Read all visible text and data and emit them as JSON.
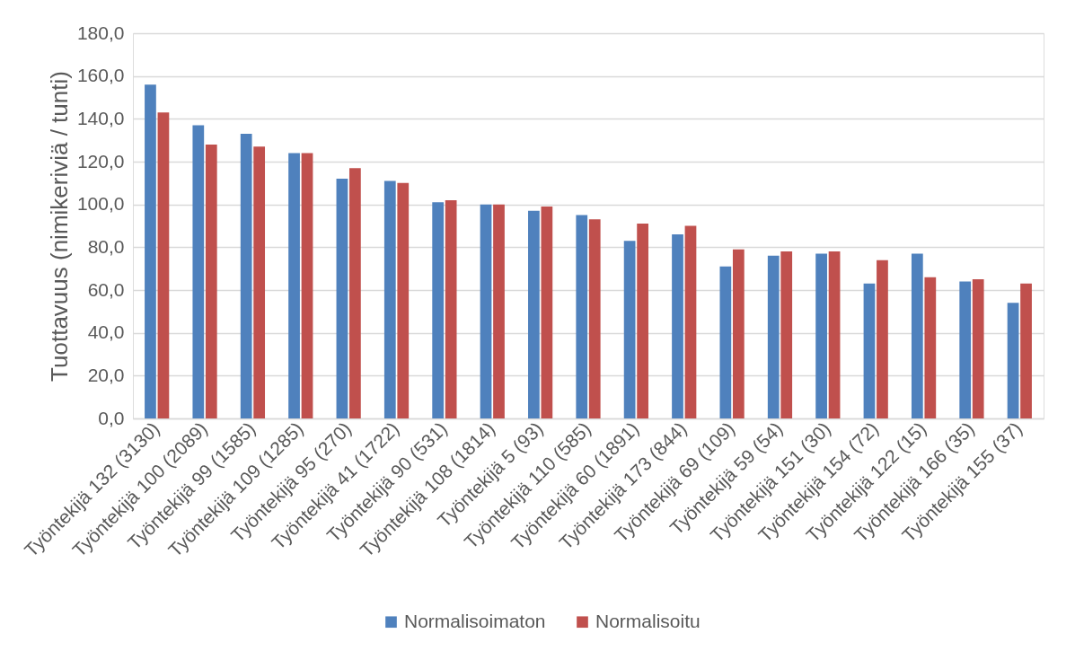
{
  "chart_data": {
    "type": "bar",
    "ylabel": "Tuottavuus (nimikeriviä / tunti)",
    "categories": [
      "Työntekijä 132 (3130)",
      "Työntekijä 100 (2089)",
      "Työntekijä 99 (1585)",
      "Työntekijä 109 (1285)",
      "Työntekijä 95 (270)",
      "Työntekijä 41 (1722)",
      "Työntekijä 90 (531)",
      "Työntekijä 108 (1814)",
      "Työntekijä 5 (93)",
      "Työntekijä 110 (585)",
      "Työntekijä 60 (1891)",
      "Työntekijä 173 (844)",
      "Työntekijä 69 (109)",
      "Työntekijä 59 (54)",
      "Työntekijä 151 (30)",
      "Työntekijä 154 (72)",
      "Työntekijä 122 (15)",
      "Työntekijä 166 (35)",
      "Työntekijä 155 (37)"
    ],
    "series": [
      {
        "name": "Normalisoimaton",
        "color": "#4f81bd",
        "values": [
          156,
          137,
          133,
          124,
          112,
          111,
          101,
          100,
          97,
          95,
          83,
          86,
          71,
          76,
          77,
          63,
          77,
          64,
          54
        ]
      },
      {
        "name": "Normalisoitu",
        "color": "#c0504d",
        "values": [
          143,
          128,
          127,
          124,
          117,
          110,
          102,
          100,
          99,
          93,
          91,
          90,
          79,
          78,
          78,
          74,
          66,
          65,
          63
        ]
      }
    ],
    "ylim": [
      0,
      180
    ],
    "yticks": [
      {
        "value": 0,
        "label": "0,0"
      },
      {
        "value": 20,
        "label": "20,0"
      },
      {
        "value": 40,
        "label": "40,0"
      },
      {
        "value": 60,
        "label": "60,0"
      },
      {
        "value": 80,
        "label": "80,0"
      },
      {
        "value": 100,
        "label": "100,0"
      },
      {
        "value": 120,
        "label": "120,0"
      },
      {
        "value": 140,
        "label": "140,0"
      },
      {
        "value": 160,
        "label": "160,0"
      },
      {
        "value": 180,
        "label": "180,0"
      }
    ],
    "grid": "y",
    "legend": "bottom"
  }
}
